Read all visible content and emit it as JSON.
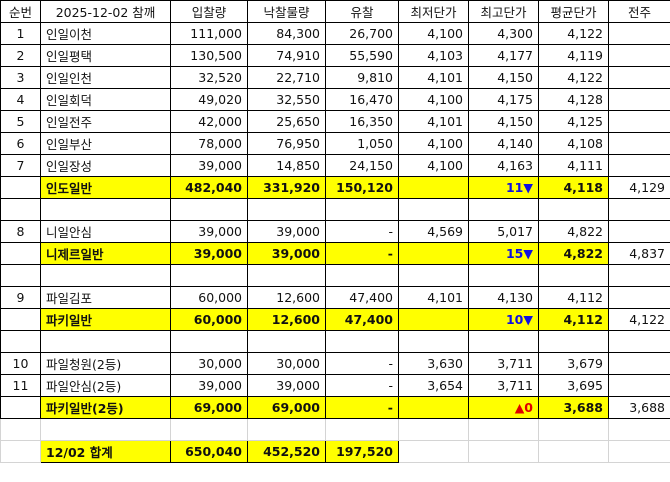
{
  "header": [
    "순번",
    "2025-12-02 참깨",
    "입찰량",
    "낙찰물량",
    "유찰",
    "최저단가",
    "최고단가",
    "평균단가",
    "전주"
  ],
  "rows": [
    {
      "type": "data",
      "no": "1",
      "name": "인일이천",
      "bid": "111,000",
      "won": "84,300",
      "unsold": "26,700",
      "min": "4,100",
      "max": "4,300",
      "avg": "4,122",
      "prev": ""
    },
    {
      "type": "data",
      "no": "2",
      "name": "인일평택",
      "bid": "130,500",
      "won": "74,910",
      "unsold": "55,590",
      "min": "4,103",
      "max": "4,177",
      "avg": "4,119",
      "prev": ""
    },
    {
      "type": "data",
      "no": "3",
      "name": "인일인천",
      "bid": "32,520",
      "won": "22,710",
      "unsold": "9,810",
      "min": "4,101",
      "max": "4,150",
      "avg": "4,122",
      "prev": ""
    },
    {
      "type": "data",
      "no": "4",
      "name": "인일회덕",
      "bid": "49,020",
      "won": "32,550",
      "unsold": "16,470",
      "min": "4,100",
      "max": "4,175",
      "avg": "4,128",
      "prev": ""
    },
    {
      "type": "data",
      "no": "5",
      "name": "인일전주",
      "bid": "42,000",
      "won": "25,650",
      "unsold": "16,350",
      "min": "4,101",
      "max": "4,150",
      "avg": "4,125",
      "prev": ""
    },
    {
      "type": "data",
      "no": "6",
      "name": "인일부산",
      "bid": "78,000",
      "won": "76,950",
      "unsold": "1,050",
      "min": "4,100",
      "max": "4,140",
      "avg": "4,108",
      "prev": ""
    },
    {
      "type": "data",
      "no": "7",
      "name": "인일장성",
      "bid": "39,000",
      "won": "14,850",
      "unsold": "24,150",
      "min": "4,100",
      "max": "4,163",
      "avg": "4,111",
      "prev": ""
    },
    {
      "type": "sum",
      "no": "",
      "name": "인도일반",
      "bid": "482,040",
      "won": "331,920",
      "unsold": "150,120",
      "min": "",
      "max": "11▼",
      "change_dir": "down",
      "avg": "4,118",
      "prev": "4,129"
    },
    {
      "type": "blank"
    },
    {
      "type": "data",
      "no": "8",
      "name": "니일안심",
      "bid": "39,000",
      "won": "39,000",
      "unsold": "-",
      "min": "4,569",
      "max": "5,017",
      "avg": "4,822",
      "prev": ""
    },
    {
      "type": "sum",
      "no": "",
      "name": "니제르일반",
      "bid": "39,000",
      "won": "39,000",
      "unsold": "-",
      "min": "",
      "max": "15▼",
      "change_dir": "down",
      "avg": "4,822",
      "prev": "4,837"
    },
    {
      "type": "blank"
    },
    {
      "type": "data",
      "no": "9",
      "name": "파일김포",
      "bid": "60,000",
      "won": "12,600",
      "unsold": "47,400",
      "min": "4,101",
      "max": "4,130",
      "avg": "4,112",
      "prev": ""
    },
    {
      "type": "sum",
      "no": "",
      "name": "파키일반",
      "bid": "60,000",
      "won": "12,600",
      "unsold": "47,400",
      "min": "",
      "max": "10▼",
      "change_dir": "down",
      "avg": "4,112",
      "prev": "4,122"
    },
    {
      "type": "blank"
    },
    {
      "type": "data",
      "no": "10",
      "name": "파일청원(2등)",
      "bid": "30,000",
      "won": "30,000",
      "unsold": "-",
      "min": "3,630",
      "max": "3,711",
      "avg": "3,679",
      "prev": ""
    },
    {
      "type": "data",
      "no": "11",
      "name": "파일안심(2등)",
      "bid": "39,000",
      "won": "39,000",
      "unsold": "-",
      "min": "3,654",
      "max": "3,711",
      "avg": "3,695",
      "prev": ""
    },
    {
      "type": "sum",
      "no": "",
      "name": "파키일반(2등)",
      "bid": "69,000",
      "won": "69,000",
      "unsold": "-",
      "min": "",
      "max": "▲0",
      "change_dir": "up",
      "avg": "3,688",
      "prev": "3,688"
    },
    {
      "type": "blank-light"
    },
    {
      "type": "total",
      "no": "",
      "name": "12/02 합계",
      "bid": "650,040",
      "won": "452,520",
      "unsold": "197,520"
    }
  ],
  "colors": {
    "highlight": "#ffff00",
    "down": "#1010e0",
    "up": "#e00000"
  }
}
